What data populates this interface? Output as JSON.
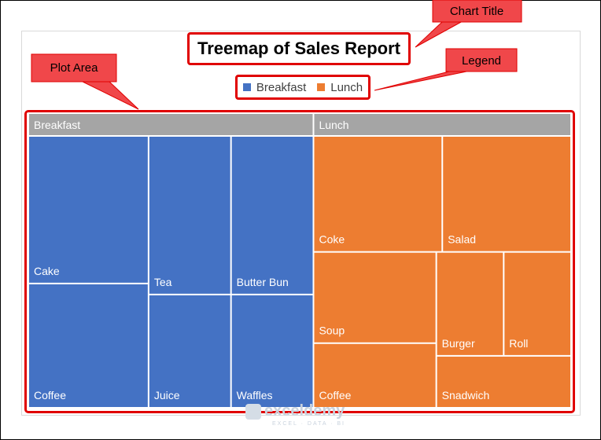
{
  "chart_data": {
    "type": "treemap",
    "title": "Treemap of Sales Report",
    "legend": {
      "entries": [
        "Breakfast",
        "Lunch"
      ],
      "placement": "top"
    },
    "groups": [
      {
        "name": "Breakfast",
        "color": "#4472c4",
        "items": [
          {
            "name": "Cake",
            "value": 19
          },
          {
            "name": "Coffee",
            "value": 16
          },
          {
            "name": "Tea",
            "value": 14
          },
          {
            "name": "Butter Bun",
            "value": 14
          },
          {
            "name": "Juice",
            "value": 10
          },
          {
            "name": "Waffles",
            "value": 10
          }
        ]
      },
      {
        "name": "Lunch",
        "color": "#ed7d31",
        "items": [
          {
            "name": "Coke",
            "value": 16
          },
          {
            "name": "Salad",
            "value": 16
          },
          {
            "name": "Soup",
            "value": 12
          },
          {
            "name": "Coffee",
            "value": 8.5
          },
          {
            "name": "Burger",
            "value": 7.5
          },
          {
            "name": "Roll",
            "value": 7.5
          },
          {
            "name": "Snadwich",
            "value": 7.5
          }
        ]
      }
    ]
  },
  "callouts": {
    "chart_title": "Chart Title",
    "legend": "Legend",
    "plot_area": "Plot Area"
  },
  "colors": {
    "header": "#a5a5a5",
    "highlight": "#e00000",
    "callout_fill": "#f0474a"
  },
  "watermark": {
    "name": "exceldemy",
    "tagline": "EXCEL · DATA · BI"
  }
}
